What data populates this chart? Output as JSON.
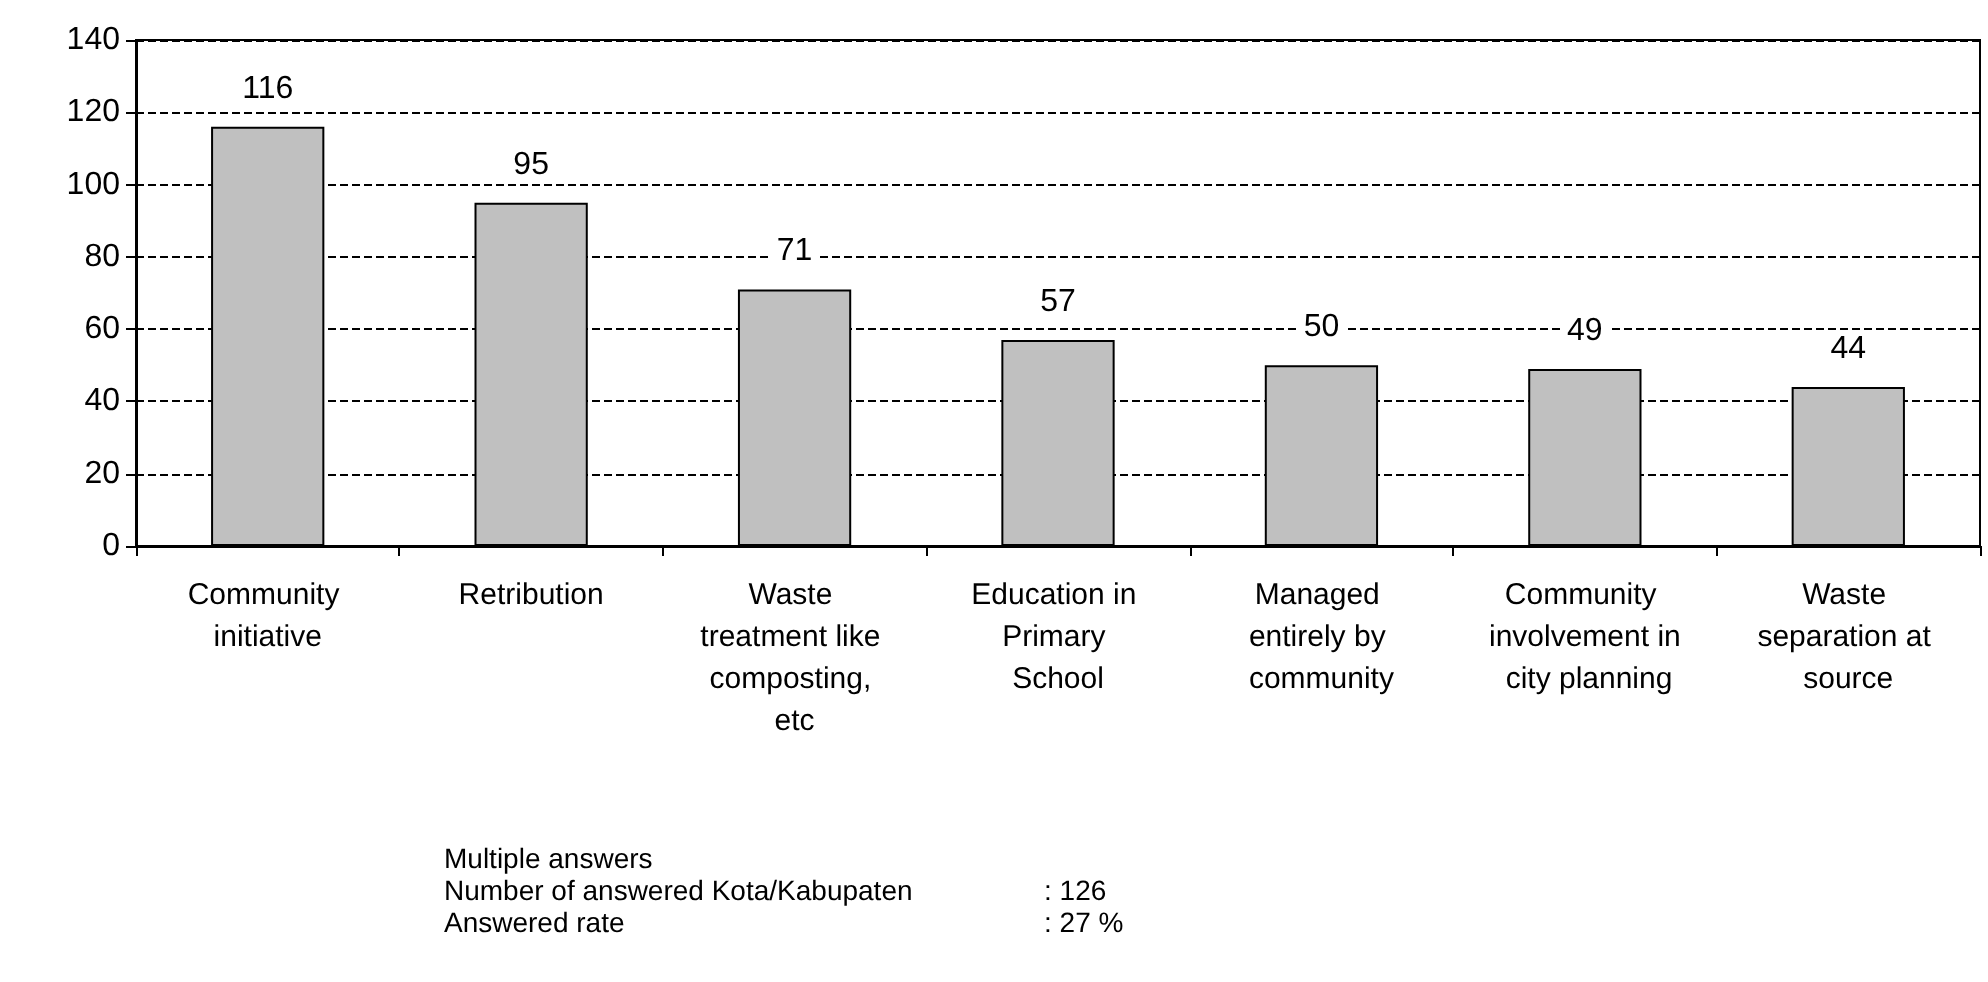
{
  "chart_data": {
    "type": "bar",
    "categories": [
      "Community initiative",
      "Retribution",
      "Waste treatment like composting, etc",
      "Education in Primary School",
      "Managed entirely by community",
      "Community involvement in city planning",
      "Waste separation at source"
    ],
    "values": [
      116,
      95,
      71,
      57,
      50,
      49,
      44
    ],
    "color": "#c0c0c0",
    "ylim": [
      0,
      140
    ],
    "yticks": [
      0,
      20,
      40,
      60,
      80,
      100,
      120,
      140
    ],
    "grid": "y",
    "data_labels": true,
    "annotations": [
      "Multiple answers",
      "Number of answered Kota/Kabupaten : 126",
      "Answered rate : 27 %"
    ]
  }
}
